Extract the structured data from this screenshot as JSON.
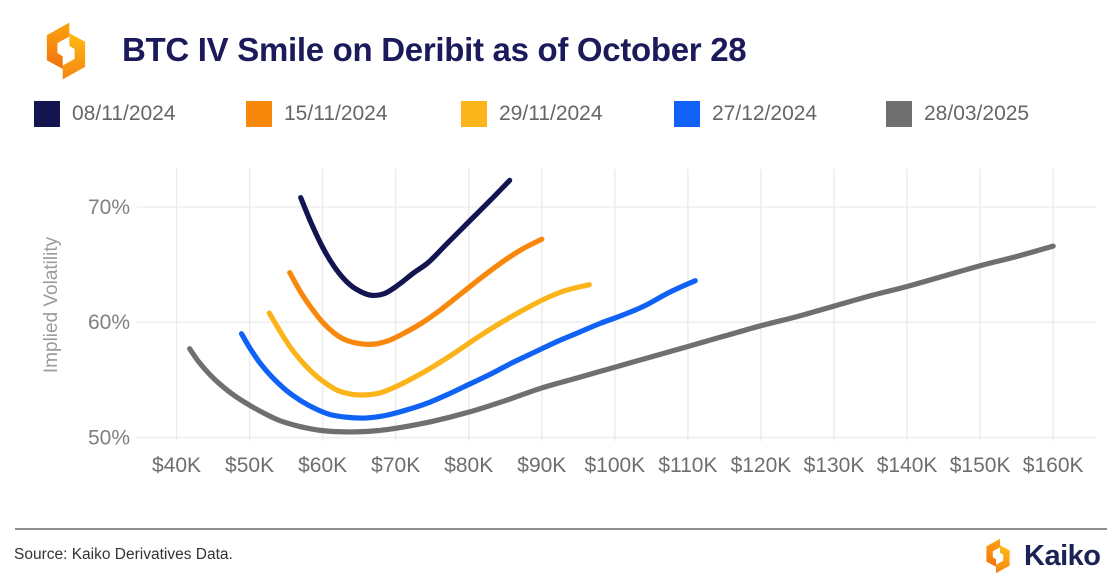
{
  "header": {
    "title": "BTC IV Smile on Deribit as of October 28"
  },
  "chart_data": {
    "type": "line",
    "title": "BTC IV Smile on Deribit as of October 28",
    "xlabel": "",
    "ylabel": "Implied Volatility",
    "x_unit": "BTC strike price, thousands USD",
    "y_unit": "implied volatility, percent",
    "xlim": [
      35,
      166
    ],
    "ylim": [
      49.7,
      73.2
    ],
    "grid": true,
    "legend_position": "top",
    "x_ticks": [
      40,
      50,
      60,
      70,
      80,
      90,
      100,
      110,
      120,
      130,
      140,
      150,
      160
    ],
    "x_tick_labels": [
      "$40K",
      "$50K",
      "$60K",
      "$70K",
      "$80K",
      "$90K",
      "$100K",
      "$110K",
      "$120K",
      "$130K",
      "$140K",
      "$150K",
      "$160K"
    ],
    "y_ticks": [
      50,
      60,
      70
    ],
    "y_tick_labels": [
      "50%",
      "60%",
      "70%"
    ],
    "series": [
      {
        "name": "08/11/2024",
        "color": "#12154f",
        "points": [
          [
            57,
            70.8
          ],
          [
            58.5,
            68.5
          ],
          [
            60,
            66.5
          ],
          [
            61.5,
            64.9
          ],
          [
            63,
            63.7
          ],
          [
            64.5,
            62.9
          ],
          [
            66.5,
            62.35
          ],
          [
            68.5,
            62.5
          ],
          [
            70.5,
            63.3
          ],
          [
            72.5,
            64.3
          ],
          [
            74.5,
            65.2
          ],
          [
            77,
            66.8
          ],
          [
            80,
            68.7
          ],
          [
            83,
            70.6
          ],
          [
            85.6,
            72.3
          ]
        ]
      },
      {
        "name": "15/11/2024",
        "color": "#f8880b",
        "points": [
          [
            55.5,
            64.3
          ],
          [
            57,
            62.6
          ],
          [
            58.5,
            61.2
          ],
          [
            60,
            60.0
          ],
          [
            61.5,
            59.1
          ],
          [
            63,
            58.5
          ],
          [
            65,
            58.15
          ],
          [
            67,
            58.1
          ],
          [
            69,
            58.4
          ],
          [
            71,
            59.0
          ],
          [
            73.5,
            59.9
          ],
          [
            76,
            61.0
          ],
          [
            79,
            62.5
          ],
          [
            82,
            64.0
          ],
          [
            85,
            65.4
          ],
          [
            87.5,
            66.4
          ],
          [
            90,
            67.2
          ]
        ]
      },
      {
        "name": "29/11/2024",
        "color": "#fbb41a",
        "points": [
          [
            52.7,
            60.8
          ],
          [
            54,
            59.4
          ],
          [
            55.5,
            57.9
          ],
          [
            57,
            56.7
          ],
          [
            58.5,
            55.7
          ],
          [
            60,
            54.9
          ],
          [
            62,
            54.1
          ],
          [
            64,
            53.75
          ],
          [
            66,
            53.7
          ],
          [
            68,
            53.9
          ],
          [
            70,
            54.4
          ],
          [
            72.5,
            55.2
          ],
          [
            75,
            56.1
          ],
          [
            78,
            57.3
          ],
          [
            81,
            58.6
          ],
          [
            84,
            59.8
          ],
          [
            87,
            60.9
          ],
          [
            90,
            61.9
          ],
          [
            93,
            62.7
          ],
          [
            96.5,
            63.25
          ]
        ]
      },
      {
        "name": "27/12/2024",
        "color": "#0f62f5",
        "points": [
          [
            48.9,
            59.0
          ],
          [
            50,
            57.8
          ],
          [
            51.5,
            56.4
          ],
          [
            53,
            55.3
          ],
          [
            55,
            54.1
          ],
          [
            57,
            53.2
          ],
          [
            59,
            52.5
          ],
          [
            61,
            52.0
          ],
          [
            63.5,
            51.75
          ],
          [
            66,
            51.7
          ],
          [
            68.5,
            51.9
          ],
          [
            71,
            52.3
          ],
          [
            74,
            52.9
          ],
          [
            77,
            53.7
          ],
          [
            80,
            54.6
          ],
          [
            83,
            55.5
          ],
          [
            86,
            56.5
          ],
          [
            89,
            57.4
          ],
          [
            92,
            58.3
          ],
          [
            95,
            59.1
          ],
          [
            98,
            59.9
          ],
          [
            101,
            60.6
          ],
          [
            104,
            61.4
          ],
          [
            107.5,
            62.6
          ],
          [
            111,
            63.6
          ]
        ]
      },
      {
        "name": "28/03/2025",
        "color": "#6f6f6f",
        "points": [
          [
            41.8,
            57.7
          ],
          [
            43,
            56.6
          ],
          [
            44.5,
            55.5
          ],
          [
            46,
            54.6
          ],
          [
            48,
            53.6
          ],
          [
            50,
            52.8
          ],
          [
            52,
            52.1
          ],
          [
            54,
            51.5
          ],
          [
            56,
            51.1
          ],
          [
            58,
            50.8
          ],
          [
            60,
            50.6
          ],
          [
            62.5,
            50.5
          ],
          [
            65,
            50.5
          ],
          [
            67.5,
            50.6
          ],
          [
            70,
            50.8
          ],
          [
            75,
            51.4
          ],
          [
            80,
            52.2
          ],
          [
            85,
            53.2
          ],
          [
            90,
            54.3
          ],
          [
            95,
            55.2
          ],
          [
            100,
            56.1
          ],
          [
            105,
            57.0
          ],
          [
            110,
            57.9
          ],
          [
            115,
            58.8
          ],
          [
            120,
            59.7
          ],
          [
            125,
            60.5
          ],
          [
            130,
            61.4
          ],
          [
            135,
            62.3
          ],
          [
            140,
            63.1
          ],
          [
            145,
            64.0
          ],
          [
            150,
            64.9
          ],
          [
            155,
            65.7
          ],
          [
            160,
            66.6
          ]
        ]
      }
    ]
  },
  "footer": {
    "source": "Source: Kaiko Derivatives Data.",
    "brand": "Kaiko"
  }
}
